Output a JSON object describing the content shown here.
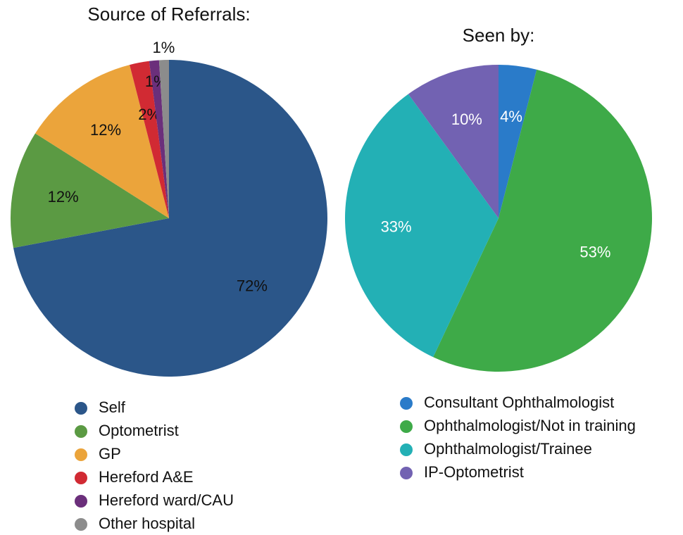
{
  "chart_data": [
    {
      "type": "pie",
      "title": "Source of Referrals:",
      "categories": [
        "Self",
        "Optometrist",
        "GP",
        "Hereford A&E",
        "Hereford ward/CAU",
        "Other hospital"
      ],
      "values": [
        72,
        12,
        12,
        2,
        1,
        1
      ],
      "value_labels": [
        "72%",
        "12%",
        "12%",
        "2%",
        "1%",
        "1%"
      ],
      "colors": [
        "#2b5689",
        "#5b9a43",
        "#eba43b",
        "#d12a33",
        "#6b2f7b",
        "#8c8c8c"
      ],
      "label_color": "#111111"
    },
    {
      "type": "pie",
      "title": "Seen by:",
      "categories": [
        "Consultant Ophthalmologist",
        "Ophthalmologist/Not in training",
        "Ophthalmologist/Trainee",
        "IP-Optometrist"
      ],
      "values": [
        4,
        53,
        33,
        10
      ],
      "value_labels": [
        "4%",
        "53%",
        "33%",
        "10%"
      ],
      "colors": [
        "#2a7bc9",
        "#3eaa48",
        "#23b0b5",
        "#7262b2"
      ],
      "label_color": "#ffffff"
    }
  ]
}
